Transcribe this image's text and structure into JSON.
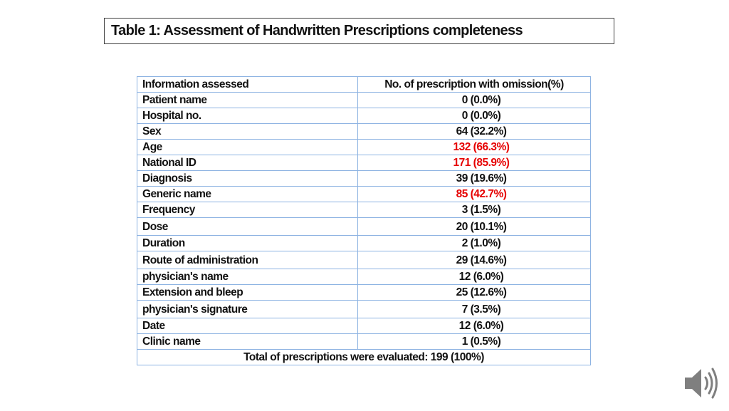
{
  "title": "Table 1: Assessment of Handwritten Prescriptions completeness",
  "table": {
    "headers": [
      "Information assessed",
      "No. of prescription with omission(%)"
    ],
    "rows": [
      {
        "item": "Patient  name",
        "value": "0 (0.0%)",
        "highlight": false
      },
      {
        "item": "Hospital  no.",
        "value": "0 (0.0%)",
        "highlight": false
      },
      {
        "item": "Sex",
        "value": "64 (32.2%)",
        "highlight": false
      },
      {
        "item": "Age",
        "value": "132 (66.3%)",
        "highlight": true
      },
      {
        "item": "National ID",
        "value": "171 (85.9%)",
        "highlight": true
      },
      {
        "item": "Diagnosis",
        "value": "39 (19.6%)",
        "highlight": false
      },
      {
        "item": "Generic name",
        "value": "85 (42.7%)",
        "highlight": true
      },
      {
        "item": "Frequency",
        "value": "3 (1.5%)",
        "highlight": false
      },
      {
        "item": "Dose",
        "value": "20 (10.1%)",
        "highlight": false
      },
      {
        "item": "Duration",
        "value": "2 (1.0%)",
        "highlight": false
      },
      {
        "item": "Route of administration",
        "value": "29 (14.6%)",
        "highlight": false
      },
      {
        "item": "physician's name",
        "value": "12 (6.0%)",
        "highlight": false
      },
      {
        "item": "Extension and bleep",
        "value": "25 (12.6%)",
        "highlight": false
      },
      {
        "item": "physician's signature",
        "value": "7 (3.5%)",
        "highlight": false
      },
      {
        "item": "Date",
        "value": "12 (6.0%)",
        "highlight": false
      },
      {
        "item": "Clinic name",
        "value": "1 (0.5%)",
        "highlight": false
      }
    ],
    "total": "Total of prescriptions were evaluated: 199 (100%)"
  },
  "colors": {
    "highlight": "#e60000",
    "grid": "#8db3e2",
    "speaker": "#7f7f7f"
  },
  "icons": {
    "speaker": "speaker-icon"
  }
}
